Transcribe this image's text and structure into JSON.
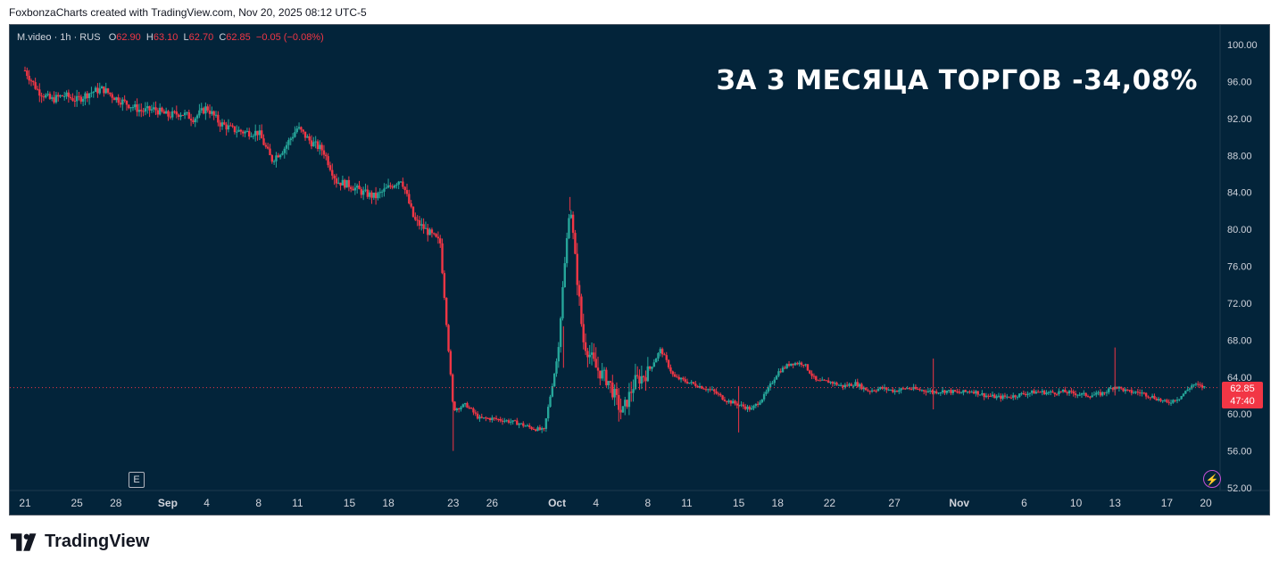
{
  "header": {
    "attribution": "FoxbonzaCharts created with TradingView.com, Nov 20, 2025 08:12 UTC-5"
  },
  "legend": {
    "symbol": "M.video · 1h · RUS",
    "open_label": "O",
    "open": "62.90",
    "high_label": "H",
    "high": "63.10",
    "low_label": "L",
    "low": "62.70",
    "close_label": "C",
    "close": "62.85",
    "change": "−0.05 (−0.08%)"
  },
  "headline": "ЗА 3 МЕСЯЦА ТОРГОВ -34,08%",
  "price_badge": {
    "price": "62.85",
    "countdown": "47:40"
  },
  "earnings_marker": "E",
  "footer": {
    "brand": "TradingView"
  },
  "colors": {
    "background": "#03243a",
    "up": "#26a69a",
    "down": "#f23645",
    "text": "#d1d4dc"
  },
  "icons": {
    "earnings": "earnings-icon",
    "alert": "lightning-icon",
    "logo": "tradingview-logo-icon"
  },
  "chart_data": {
    "type": "candlestick",
    "ylim": [
      52,
      100
    ],
    "y_ticks": [
      "100.00",
      "96.00",
      "92.00",
      "88.00",
      "84.00",
      "80.00",
      "76.00",
      "72.00",
      "68.00",
      "64.00",
      "60.00",
      "56.00",
      "52.00"
    ],
    "x_ticks": [
      {
        "label": "21",
        "day": 0
      },
      {
        "label": "25",
        "day": 4
      },
      {
        "label": "28",
        "day": 7
      },
      {
        "label": "Sep",
        "day": 11
      },
      {
        "label": "4",
        "day": 14
      },
      {
        "label": "8",
        "day": 18
      },
      {
        "label": "11",
        "day": 21
      },
      {
        "label": "15",
        "day": 25
      },
      {
        "label": "18",
        "day": 28
      },
      {
        "label": "23",
        "day": 33
      },
      {
        "label": "26",
        "day": 36
      },
      {
        "label": "Oct",
        "day": 41
      },
      {
        "label": "4",
        "day": 44
      },
      {
        "label": "8",
        "day": 48
      },
      {
        "label": "11",
        "day": 51
      },
      {
        "label": "15",
        "day": 55
      },
      {
        "label": "18",
        "day": 58
      },
      {
        "label": "22",
        "day": 62
      },
      {
        "label": "27",
        "day": 67
      },
      {
        "label": "Nov",
        "day": 72
      },
      {
        "label": "6",
        "day": 77
      },
      {
        "label": "10",
        "day": 81
      },
      {
        "label": "13",
        "day": 84
      },
      {
        "label": "17",
        "day": 88
      },
      {
        "label": "20",
        "day": 91
      }
    ],
    "current_price": 62.85,
    "price_path": [
      [
        0,
        97.2
      ],
      [
        1,
        95.0
      ],
      [
        2,
        94.0
      ],
      [
        3,
        94.5
      ],
      [
        4,
        94.0
      ],
      [
        5,
        94.8
      ],
      [
        6,
        95.2
      ],
      [
        7,
        94.2
      ],
      [
        8,
        93.5
      ],
      [
        9,
        92.8
      ],
      [
        10,
        93.0
      ],
      [
        11,
        92.3
      ],
      [
        12,
        92.6
      ],
      [
        13,
        92.0
      ],
      [
        14,
        93.2
      ],
      [
        15,
        91.5
      ],
      [
        16,
        90.8
      ],
      [
        17,
        90.5
      ],
      [
        18,
        90.5
      ],
      [
        19,
        87.5
      ],
      [
        20,
        88.8
      ],
      [
        21,
        91.0
      ],
      [
        22,
        89.5
      ],
      [
        23,
        88.5
      ],
      [
        24,
        85.2
      ],
      [
        25,
        84.8
      ],
      [
        26,
        84.0
      ],
      [
        27,
        83.5
      ],
      [
        28,
        84.5
      ],
      [
        29,
        85.5
      ],
      [
        30,
        81.0
      ],
      [
        31,
        79.8
      ],
      [
        32,
        78.5
      ],
      [
        33,
        60.5
      ],
      [
        34,
        61.0
      ],
      [
        35,
        59.5
      ],
      [
        36,
        59.5
      ],
      [
        37,
        59.3
      ],
      [
        38,
        59.0
      ],
      [
        39,
        58.5
      ],
      [
        40,
        58.2
      ],
      [
        41,
        66.0
      ],
      [
        42,
        83.0
      ],
      [
        43,
        68.0
      ],
      [
        44,
        65.0
      ],
      [
        45,
        63.5
      ],
      [
        46,
        60.0
      ],
      [
        47,
        63.5
      ],
      [
        48,
        64.5
      ],
      [
        49,
        67.0
      ],
      [
        50,
        64.0
      ],
      [
        51,
        63.5
      ],
      [
        52,
        63.0
      ],
      [
        53,
        62.5
      ],
      [
        54,
        61.5
      ],
      [
        55,
        61.0
      ],
      [
        56,
        60.5
      ],
      [
        57,
        62.0
      ],
      [
        58,
        64.5
      ],
      [
        59,
        65.5
      ],
      [
        60,
        65.5
      ],
      [
        61,
        63.5
      ],
      [
        62,
        63.5
      ],
      [
        63,
        63.0
      ],
      [
        64,
        63.3
      ],
      [
        65,
        62.5
      ],
      [
        66,
        62.8
      ],
      [
        67,
        62.5
      ],
      [
        68,
        62.8
      ],
      [
        69,
        62.6
      ],
      [
        70,
        62.4
      ],
      [
        71,
        62.5
      ],
      [
        72,
        62.3
      ],
      [
        73,
        62.5
      ],
      [
        74,
        62.0
      ],
      [
        75,
        61.8
      ],
      [
        76,
        61.9
      ],
      [
        77,
        62.2
      ],
      [
        78,
        62.4
      ],
      [
        79,
        62.3
      ],
      [
        80,
        62.4
      ],
      [
        81,
        62.2
      ],
      [
        82,
        62.0
      ],
      [
        83,
        62.2
      ],
      [
        84,
        63.0
      ],
      [
        85,
        62.4
      ],
      [
        86,
        62.3
      ],
      [
        87,
        61.8
      ],
      [
        88,
        61.2
      ],
      [
        89,
        61.8
      ],
      [
        90,
        63.2
      ],
      [
        91,
        62.85
      ]
    ]
  }
}
